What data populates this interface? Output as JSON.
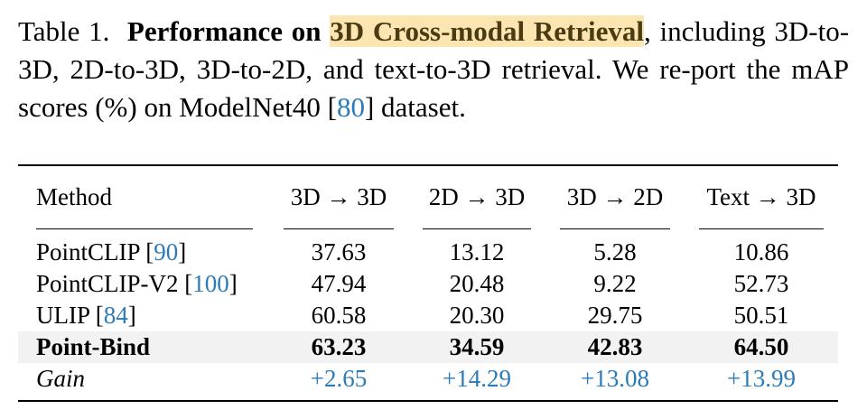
{
  "caption": {
    "label": "Table 1.",
    "bold_lead": "Performance on",
    "highlight": "3D Cross-modal Retrieval",
    "text_1": ", including 3D-to-3D, 2D-to-3D, 3D-to-2D, and text-to-3D retrieval. We re-port the mAP scores (%) on ModelNet40 [",
    "cite": "80",
    "text_2": "] dataset."
  },
  "table": {
    "headers": [
      "Method",
      "3D → 3D",
      "2D → 3D",
      "3D → 2D",
      "Text → 3D"
    ],
    "rows": [
      {
        "method": "PointCLIP [",
        "cite": "90",
        "close": "]",
        "values": [
          "37.63",
          "13.12",
          "5.28",
          "10.86"
        ]
      },
      {
        "method": "PointCLIP-V2 [",
        "cite": "100",
        "close": "]",
        "values": [
          "47.94",
          "20.48",
          "9.22",
          "52.73"
        ]
      },
      {
        "method": "ULIP [",
        "cite": "84",
        "close": "]",
        "values": [
          "60.58",
          "20.30",
          "29.75",
          "50.51"
        ]
      },
      {
        "method": "Point-Bind",
        "values": [
          "63.23",
          "34.59",
          "42.83",
          "64.50"
        ]
      },
      {
        "method": "Gain",
        "values": [
          "+2.65",
          "+14.29",
          "+13.08",
          "+13.99"
        ]
      }
    ]
  },
  "colors": {
    "highlight_bg": "#fbe5b0",
    "citation": "#2b7bb9",
    "shaded_row": "#f2f2f2"
  }
}
